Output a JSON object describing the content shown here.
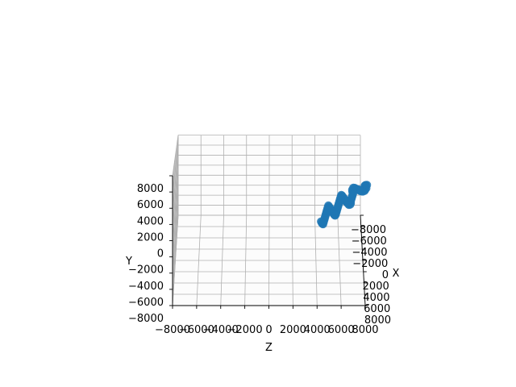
{
  "chart_data": {
    "type": "scatter",
    "projection": "3d",
    "grid": true,
    "series_color": "#1f77b4",
    "axes": {
      "x": {
        "label": "X",
        "ticks": [
          "−8000",
          "−6000",
          "−4000",
          "−2000",
          "0",
          "2000",
          "4000",
          "6000",
          "8000"
        ],
        "range": [
          -8000,
          8000
        ]
      },
      "y": {
        "label": "Y",
        "ticks": [
          "−8000",
          "−6000",
          "−4000",
          "−2000",
          "0",
          "2000",
          "4000",
          "6000",
          "8000"
        ],
        "range": [
          -8000,
          8000
        ]
      },
      "z": {
        "label": "Z",
        "ticks": [
          "−8000",
          "−6000",
          "−4000",
          "−2000",
          "0",
          "2000",
          "4000",
          "6000",
          "8000"
        ],
        "range": [
          -8000,
          8000
        ]
      }
    },
    "points": [
      [
        5600,
        6000,
        8200
      ],
      [
        5900,
        6100,
        8100
      ],
      [
        6300,
        6200,
        8050
      ],
      [
        6700,
        6300,
        8000
      ],
      [
        7100,
        6350,
        8050
      ],
      [
        7400,
        6250,
        8100
      ],
      [
        7700,
        6200,
        8000
      ],
      [
        8000,
        6150,
        7950
      ],
      [
        7800,
        6000,
        7800
      ],
      [
        7500,
        5900,
        7700
      ],
      [
        7200,
        5850,
        7650
      ],
      [
        6800,
        5700,
        7600
      ],
      [
        6400,
        5650,
        7550
      ],
      [
        6000,
        5550,
        7500
      ],
      [
        5700,
        5450,
        7400
      ],
      [
        5400,
        5350,
        7300
      ],
      [
        5000,
        5300,
        7250
      ],
      [
        4600,
        5200,
        7200
      ],
      [
        4300,
        5100,
        7100
      ],
      [
        4600,
        4950,
        7000
      ],
      [
        5000,
        4900,
        7000
      ],
      [
        5400,
        4850,
        7050
      ],
      [
        5800,
        4800,
        7000
      ],
      [
        6200,
        4750,
        6950
      ],
      [
        6600,
        4700,
        6900
      ],
      [
        7000,
        4650,
        6850
      ],
      [
        7400,
        4600,
        6800
      ],
      [
        7800,
        4550,
        6800
      ],
      [
        8100,
        4500,
        6750
      ],
      [
        7800,
        4350,
        6650
      ],
      [
        7400,
        4300,
        6600
      ],
      [
        7000,
        4250,
        6550
      ],
      [
        6600,
        4150,
        6500
      ],
      [
        6200,
        4100,
        6450
      ],
      [
        5800,
        4050,
        6400
      ],
      [
        5400,
        4000,
        6350
      ],
      [
        5000,
        3950,
        6300
      ],
      [
        4600,
        3900,
        6250
      ],
      [
        4200,
        3850,
        6200
      ],
      [
        3800,
        3800,
        6150
      ],
      [
        3500,
        3750,
        6100
      ],
      [
        3800,
        3650,
        6050
      ],
      [
        4200,
        3600,
        6000
      ],
      [
        4600,
        3550,
        5950
      ],
      [
        5000,
        3500,
        5900
      ],
      [
        5400,
        3450,
        5850
      ],
      [
        5800,
        3400,
        5800
      ],
      [
        6200,
        3350,
        5750
      ],
      [
        6600,
        3300,
        5700
      ],
      [
        7000,
        3250,
        5650
      ],
      [
        7400,
        3200,
        5600
      ],
      [
        7800,
        3150,
        5550
      ],
      [
        8000,
        3100,
        5500
      ],
      [
        7600,
        3000,
        5450
      ],
      [
        7200,
        2950,
        5400
      ],
      [
        6800,
        2900,
        5350
      ],
      [
        6400,
        2850,
        5300
      ],
      [
        6000,
        2800,
        5250
      ],
      [
        5600,
        2750,
        5200
      ],
      [
        5200,
        2700,
        5150
      ],
      [
        4800,
        2650,
        5100
      ],
      [
        4400,
        2600,
        5050
      ],
      [
        4000,
        2550,
        5000
      ],
      [
        4300,
        2450,
        4950
      ],
      [
        4700,
        2400,
        4900
      ],
      [
        5100,
        2350,
        4850
      ],
      [
        5500,
        2300,
        4800
      ],
      [
        5900,
        2250,
        4750
      ],
      [
        6300,
        2200,
        4700
      ],
      [
        6700,
        2150,
        4650
      ],
      [
        7100,
        2100,
        4600
      ],
      [
        7500,
        2050,
        4550
      ],
      [
        7900,
        2000,
        4500
      ],
      [
        7700,
        1950,
        4450
      ],
      [
        7300,
        1900,
        4400
      ],
      [
        6900,
        1850,
        4350
      ]
    ]
  }
}
